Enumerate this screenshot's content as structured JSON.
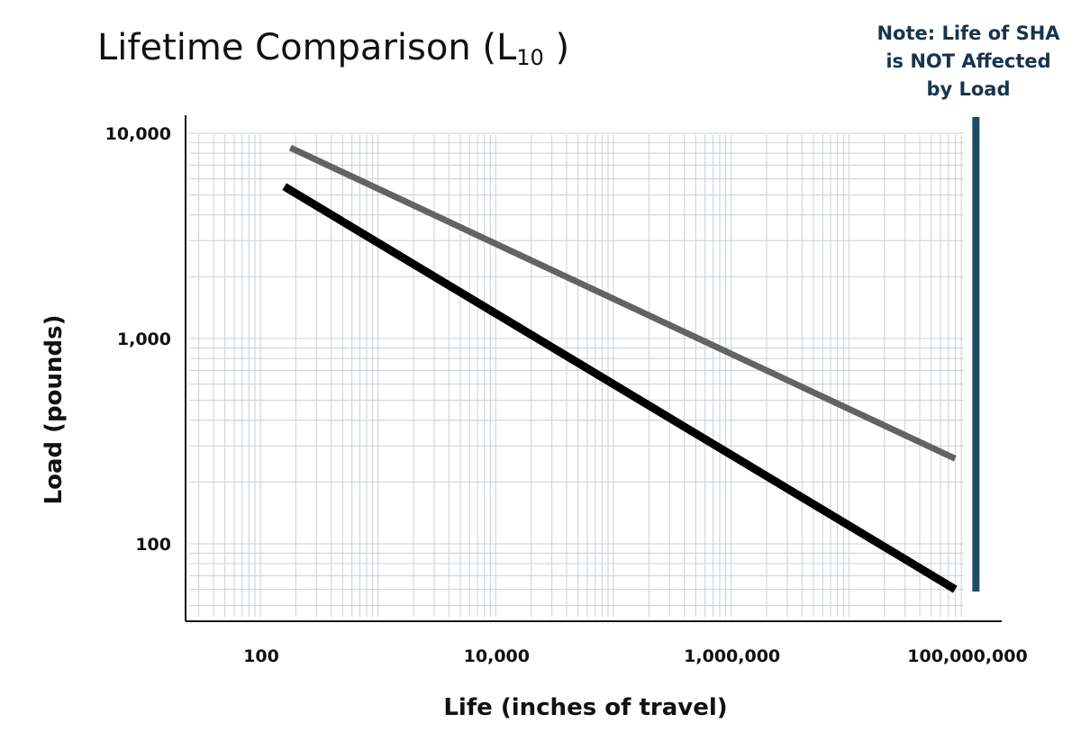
{
  "title": {
    "text": "Lifetime Comparison (L",
    "subscript": "10",
    "close": " )"
  },
  "note": {
    "lines": [
      "Note: Life of SHA",
      "is NOT Affected",
      "by Load"
    ]
  },
  "colors": {
    "upper_line": "#636363",
    "lower_line": "#000000",
    "sha_bar": "#1d4d66",
    "grid": "#c9d0d6",
    "axis": "#111111"
  },
  "chart_data": {
    "type": "line",
    "title": "Lifetime Comparison (L10 )",
    "xlabel": "Life (inches of travel)",
    "ylabel": "Load (pounds)",
    "x_scale": "log",
    "y_scale": "log",
    "grid": true,
    "x_ticks": [
      {
        "value": 100,
        "label": "100"
      },
      {
        "value": 10000,
        "label": "10,000"
      },
      {
        "value": 1000000,
        "label": "1,000,000"
      },
      {
        "value": 100000000,
        "label": "100,000,000"
      }
    ],
    "y_ticks": [
      {
        "value": 100,
        "label": "100"
      },
      {
        "value": 1000,
        "label": "1,000"
      },
      {
        "value": 10000,
        "label": "10,000"
      }
    ],
    "series": [
      {
        "points": [
          [
            180,
            8500
          ],
          [
            80000000,
            260
          ]
        ]
      },
      {
        "points": [
          [
            160,
            5500
          ],
          [
            80000000,
            60
          ]
        ]
      }
    ],
    "annotation": {
      "text": "Note: Life of SHA is NOT Affected by Load",
      "x": 120000000
    }
  }
}
